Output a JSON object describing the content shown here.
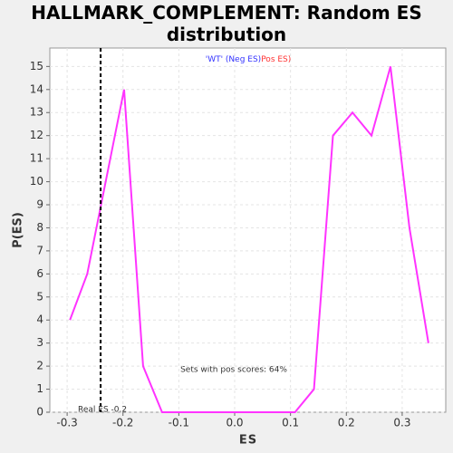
{
  "chart_data": {
    "type": "line",
    "title": "HALLMARK_COMPLEMENT: Random ES distribution",
    "xlabel": "ES",
    "ylabel": "P(ES)",
    "x": [
      -0.295,
      -0.264,
      -0.198,
      -0.164,
      -0.13,
      -0.096,
      -0.062,
      -0.028,
      0.006,
      0.04,
      0.074,
      0.108,
      0.142,
      0.176,
      0.211,
      0.245,
      0.279,
      0.313,
      0.347
    ],
    "series": [
      {
        "name": "P(ES)",
        "color": "#ff33ff",
        "values": [
          4,
          6,
          14,
          2,
          0,
          0,
          0,
          0,
          0,
          0,
          0,
          0,
          1,
          12,
          13,
          12,
          15,
          8,
          3
        ]
      }
    ],
    "xlim": [
      -0.331,
      0.378
    ],
    "ylim": [
      0,
      15.8
    ],
    "xticks": [
      -0.3,
      -0.2,
      -0.1,
      {
        "value": 0,
        "label": "0.0"
      },
      0.1,
      0.2,
      0.3
    ],
    "yticks": [
      0,
      1,
      2,
      3,
      4,
      5,
      6,
      7,
      8,
      9,
      10,
      11,
      12,
      13,
      14,
      15
    ],
    "grid": true,
    "real_es": -0.24,
    "real_es_label": "Real ES -0.2",
    "annotation": "Sets with pos scores: 64%",
    "legend_neg": "'WT' (Neg ES)",
    "legend_neg_color": "#3333ff",
    "legend_pos": "Pos ES)",
    "legend_pos_color": "#ff3333"
  }
}
